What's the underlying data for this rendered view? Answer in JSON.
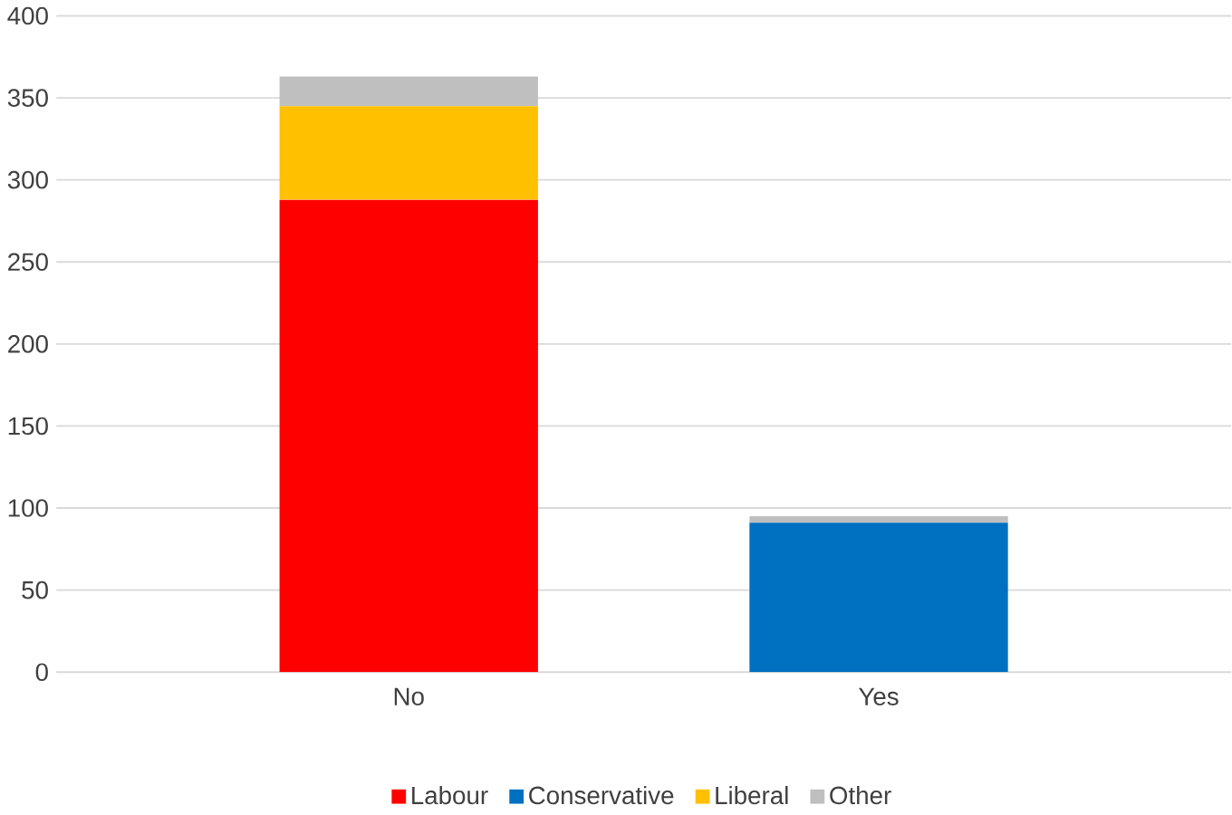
{
  "chart_data": {
    "type": "bar",
    "stacked": true,
    "categories": [
      "No",
      "Yes"
    ],
    "series": [
      {
        "name": "Labour",
        "color": "#ff0000",
        "values": [
          288,
          0
        ]
      },
      {
        "name": "Conservative",
        "color": "#0070c0",
        "values": [
          0,
          91
        ]
      },
      {
        "name": "Liberal",
        "color": "#ffc000",
        "values": [
          57,
          0
        ]
      },
      {
        "name": "Other",
        "color": "#bfbfbf",
        "values": [
          18,
          4
        ]
      }
    ],
    "ylim": [
      0,
      400
    ],
    "yticks": [
      0,
      50,
      100,
      150,
      200,
      250,
      300,
      350,
      400
    ],
    "grid": "y",
    "legend": "bottom"
  }
}
